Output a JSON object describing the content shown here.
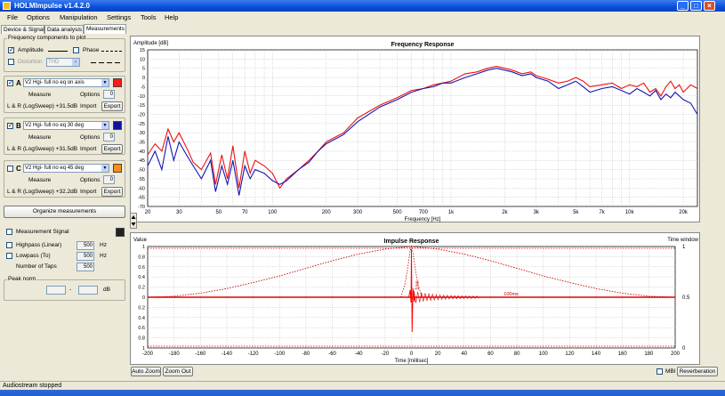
{
  "window": {
    "title": "HOLMImpulse v1.4.2.0",
    "minimize": "_",
    "maximize": "□",
    "close": "×"
  },
  "menu": [
    "File",
    "Options",
    "Manipulation",
    "Settings",
    "Tools",
    "Help"
  ],
  "tabs": [
    "Device & Signal",
    "Data analysis",
    "Measurements"
  ],
  "freq_components": {
    "title": "Frequency components to plot",
    "amplitude": "Amplitude",
    "amplitude_checked": true,
    "phase": "Phase",
    "phase_checked": false,
    "distortion": "Distortion",
    "distortion_checked": false,
    "distortion_type": "THD"
  },
  "measurements": [
    {
      "letter": "A",
      "checked": true,
      "name": "V2 Hgi- full no eq on axis",
      "measure": "Measure",
      "options": "Options",
      "value": "0",
      "info": "L & R (LogSweep) +31.5dB",
      "import": "Import",
      "export": "Export",
      "color": "#ff1a1a"
    },
    {
      "letter": "B",
      "checked": true,
      "name": "V2 Hgi- full no eq 30 deg",
      "measure": "Measure",
      "options": "Options",
      "value": "0",
      "info": "L & R (LogSweep) +31.5dB",
      "import": "Import",
      "export": "Export",
      "color": "#1010a0"
    },
    {
      "letter": "C",
      "checked": false,
      "name": "V2 Hgi- full no eq 45 deg",
      "measure": "Measure",
      "options": "Options",
      "value": "0",
      "info": "L & R (LogSweep) +32.2dB",
      "import": "Import",
      "export": "Export",
      "color": "#ff8c1a"
    }
  ],
  "organize_button": "Organize measurements",
  "signal": {
    "measurement_signal": "Measurement Signal",
    "highpass": "Highpass (Linear)",
    "highpass_value": "500",
    "highpass_unit": "Hz",
    "lowpass": "Lowpass (To)",
    "lowpass_value": "500",
    "lowpass_unit": "Hz",
    "taps": "Number of Taps",
    "taps_value": "500"
  },
  "peak": {
    "label": "Peak norm",
    "sep": "-",
    "unit": "dB"
  },
  "freq_chart": {
    "chart_data": {
      "type": "line",
      "title": "Frequency Response",
      "ylabel": "Amplitude [dB]",
      "xlabel": "Frequency [Hz]",
      "xscale": "log",
      "xlim": [
        20,
        24000
      ],
      "ylim": [
        -70,
        15
      ],
      "xticks": [
        20,
        30,
        50,
        70,
        100,
        200,
        300,
        500,
        700,
        "1k",
        "2k",
        "3k",
        "5k",
        "7k",
        "10k",
        "20k"
      ],
      "yticks": [
        15,
        10,
        5,
        0,
        -5,
        -10,
        -15,
        -20,
        -25,
        -30,
        -35,
        -40,
        -45,
        -50,
        -55,
        -60,
        -65,
        -70
      ],
      "grid": true,
      "series": [
        {
          "color": "#ee1111",
          "x": [
            20,
            22,
            24,
            26,
            28,
            30,
            33,
            36,
            40,
            45,
            48,
            52,
            56,
            60,
            65,
            70,
            75,
            80,
            90,
            100,
            110,
            120,
            140,
            160,
            180,
            200,
            250,
            300,
            400,
            500,
            600,
            700,
            800,
            900,
            1000,
            1200,
            1400,
            1600,
            1800,
            2000,
            2200,
            2500,
            2800,
            3000,
            3500,
            4000,
            4500,
            5000,
            5500,
            6000,
            7000,
            8000,
            9000,
            10000,
            11000,
            12000,
            13000,
            14000,
            15000,
            16000,
            17000,
            18000,
            19000,
            20000,
            22000,
            24000
          ],
          "y": [
            -42,
            -36,
            -40,
            -28,
            -35,
            -30,
            -38,
            -46,
            -50,
            -41,
            -58,
            -42,
            -55,
            -37,
            -60,
            -40,
            -52,
            -45,
            -48,
            -52,
            -60,
            -55,
            -50,
            -45,
            -40,
            -35,
            -30,
            -22,
            -15,
            -11,
            -7,
            -6,
            -4,
            -3,
            -2,
            2,
            3,
            5,
            6,
            5,
            4,
            2,
            3,
            1,
            -1,
            -3,
            -2,
            0,
            -2,
            -5,
            -4,
            -3,
            -6,
            -4,
            -5,
            -3,
            -8,
            -6,
            -10,
            -5,
            -2,
            -6,
            -4,
            -8,
            -4,
            -6
          ]
        },
        {
          "color": "#1515b5",
          "x": [
            20,
            22,
            24,
            26,
            28,
            30,
            33,
            36,
            40,
            45,
            48,
            52,
            56,
            60,
            65,
            70,
            75,
            80,
            90,
            100,
            110,
            120,
            140,
            160,
            180,
            200,
            250,
            300,
            400,
            500,
            600,
            700,
            800,
            900,
            1000,
            1200,
            1400,
            1600,
            1800,
            2000,
            2200,
            2500,
            2800,
            3000,
            3500,
            4000,
            4500,
            5000,
            5500,
            6000,
            7000,
            8000,
            9000,
            10000,
            11000,
            12000,
            13000,
            14000,
            15000,
            16000,
            17000,
            18000,
            19000,
            20000,
            22000,
            24000
          ],
          "y": [
            -48,
            -40,
            -50,
            -32,
            -45,
            -35,
            -42,
            -48,
            -55,
            -45,
            -62,
            -48,
            -58,
            -45,
            -64,
            -48,
            -55,
            -50,
            -52,
            -56,
            -58,
            -56,
            -50,
            -46,
            -40,
            -36,
            -31,
            -24,
            -16,
            -12,
            -8,
            -6,
            -5,
            -3,
            -3,
            0,
            2,
            4,
            5,
            4,
            3,
            1,
            2,
            0,
            -2,
            -6,
            -4,
            -2,
            -5,
            -8,
            -6,
            -5,
            -7,
            -9,
            -6,
            -8,
            -10,
            -7,
            -12,
            -9,
            -11,
            -8,
            -10,
            -12,
            -14,
            -20
          ]
        }
      ]
    }
  },
  "impulse_chart": {
    "chart_data": {
      "type": "line",
      "title": "Impulse Response",
      "ylabel": "Value",
      "y2label": "Time window",
      "xlabel": "Time [millisec]",
      "xlim": [
        -200,
        200
      ],
      "ylim": [
        -1,
        1
      ],
      "xticks": [
        -200,
        -180,
        -160,
        -140,
        -120,
        -100,
        -80,
        -60,
        -40,
        -20,
        0,
        20,
        40,
        60,
        80,
        100,
        120,
        140,
        160,
        180,
        200
      ],
      "yticks": [
        "1",
        "0.8",
        "0.6",
        "0.4",
        "0.2",
        "0",
        "0.2",
        "0.4",
        "0.6",
        "0.8",
        "1"
      ],
      "y2ticks": [
        "1",
        "0.5",
        "0"
      ],
      "grid": true,
      "annotations": [
        "1ms",
        "100ms"
      ],
      "series": [
        {
          "color": "#cc0000",
          "x": [
            -200,
            -180,
            -160,
            -140,
            -120,
            -100,
            -80,
            -60,
            -40,
            -20,
            0,
            20,
            40,
            60,
            80,
            100,
            120,
            140,
            160,
            180,
            200
          ],
          "y": [
            0,
            0.02,
            0.08,
            0.17,
            0.29,
            0.42,
            0.57,
            0.72,
            0.85,
            0.95,
            1,
            0.95,
            0.85,
            0.72,
            0.57,
            0.42,
            0.29,
            0.17,
            0.08,
            0.02,
            0
          ]
        }
      ]
    }
  },
  "bottom": {
    "auto_zoom": "Auto Zoom",
    "zoom_out": "Zoom Out",
    "mbi": "MBI",
    "reverberation": "Reverberation"
  },
  "status": "Audiostream stopped"
}
